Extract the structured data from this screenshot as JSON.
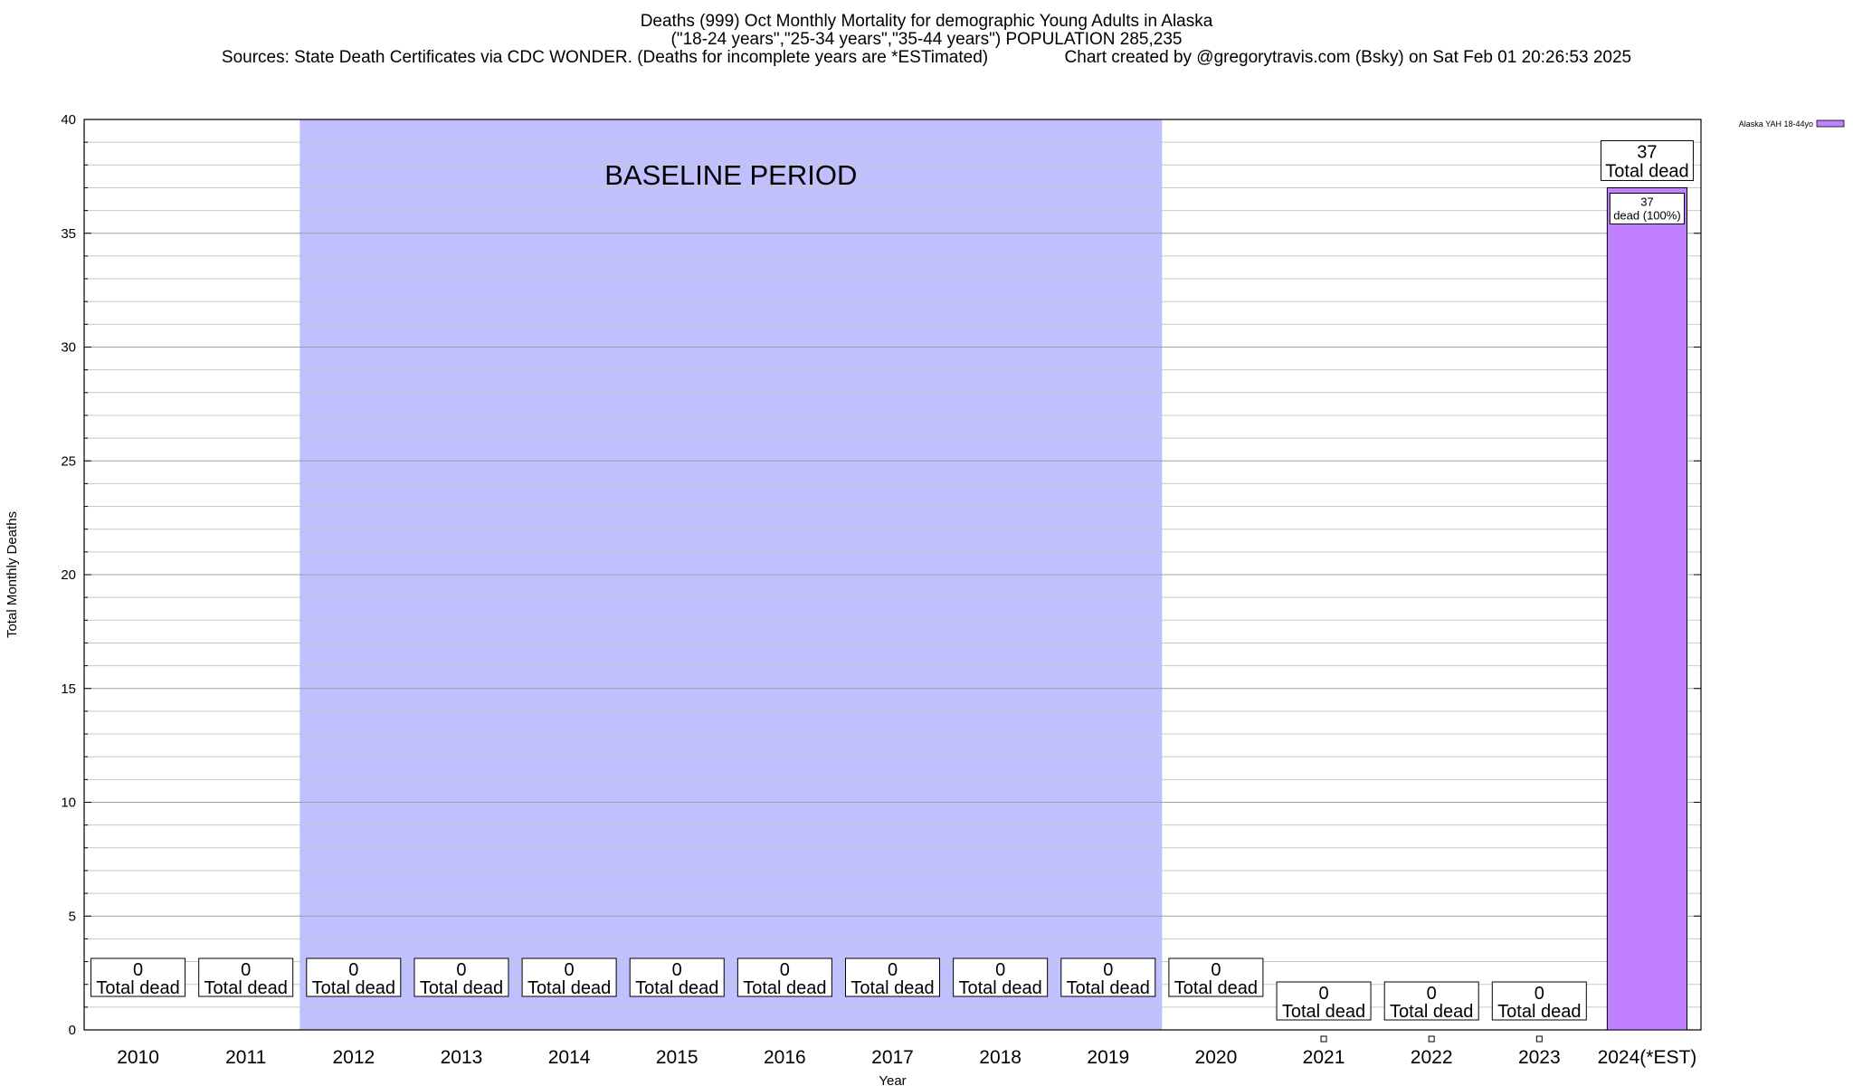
{
  "chart_data": {
    "type": "bar",
    "title_lines": [
      "Deaths (999) Oct Monthly Mortality for demographic Young Adults in Alaska",
      "(\"18-24 years\",\"25-34 years\",\"35-44 years\") POPULATION 285,235",
      "Sources: State Death Certificates via CDC WONDER. (Deaths for incomplete years are *ESTimated)                Chart created by @gregorytravis.com (Bsky) on Sat Feb 01 20:26:53 2025"
    ],
    "xlabel": "Year",
    "ylabel": "Total Monthly Deaths",
    "ylim": [
      0,
      40
    ],
    "yticks": [
      0,
      5,
      10,
      15,
      20,
      25,
      30,
      35,
      40
    ],
    "categories": [
      "2010",
      "2011",
      "2012",
      "2013",
      "2014",
      "2015",
      "2016",
      "2017",
      "2018",
      "2019",
      "2020",
      "2021",
      "2022",
      "2023",
      "2024(*EST)"
    ],
    "values": [
      0,
      0,
      0,
      0,
      0,
      0,
      0,
      0,
      0,
      0,
      0,
      0,
      0,
      0,
      37
    ],
    "total_label_suffix": "Total dead",
    "series": [
      {
        "name": "Alaska YAH 18-44yo",
        "values": [
          0,
          0,
          0,
          0,
          0,
          0,
          0,
          0,
          0,
          0,
          0,
          0,
          0,
          0,
          37
        ],
        "color": "#c080ff"
      }
    ],
    "segment_labels": [
      {
        "category": "2024(*EST)",
        "line1": "37",
        "line2": "dead (100%)"
      }
    ],
    "baseline_band": {
      "label": "BASELINE PERIOD",
      "from_category": "2012",
      "to_category": "2019",
      "color": "#c0c0ff"
    },
    "grid": true,
    "legend_position": "top-right"
  }
}
